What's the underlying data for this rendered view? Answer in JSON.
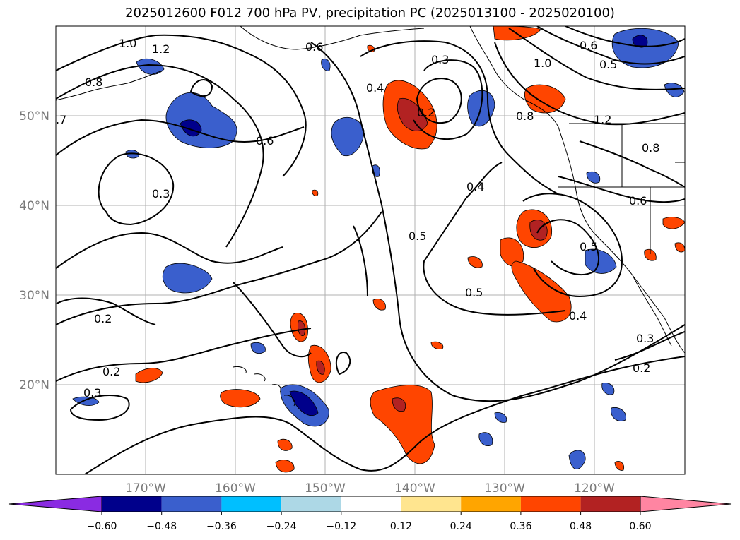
{
  "title": "2025012600 F012 700 hPa PV, precipitation PC (2025013100 - 2025020100)",
  "map": {
    "projection": "PlateCarree",
    "lon_range": [
      -180,
      -110
    ],
    "lat_range": [
      10,
      60
    ],
    "lon_ticks": [
      {
        "value": -170,
        "label": "170°W"
      },
      {
        "value": -160,
        "label": "160°W"
      },
      {
        "value": -150,
        "label": "150°W"
      },
      {
        "value": -140,
        "label": "140°W"
      },
      {
        "value": -130,
        "label": "130°W"
      },
      {
        "value": -120,
        "label": "120°W"
      }
    ],
    "lat_ticks": [
      {
        "value": 50,
        "label": "50°N"
      },
      {
        "value": 40,
        "label": "40°N"
      },
      {
        "value": 30,
        "label": "30°N"
      },
      {
        "value": 20,
        "label": "20°N"
      }
    ],
    "gridlines": true,
    "coastlines": true
  },
  "contour_labels": [
    "1.0",
    "1.2",
    "0.8",
    "0.6",
    "0.3",
    "0.4",
    "0.2",
    "0.5",
    "0.6",
    "0.4",
    "0.5",
    "0.3",
    "0.2",
    "0.4",
    "0.6",
    "0.8",
    "1.2",
    "1.0",
    "0.5",
    "0.6",
    "0.8",
    "0.3",
    "0.2",
    "0.2",
    "0.3",
    "0.5",
    ".7"
  ],
  "colorbar": {
    "ticks": [
      "−0.60",
      "−0.48",
      "−0.36",
      "−0.24",
      "−0.12",
      "0.12",
      "0.24",
      "0.36",
      "0.48",
      "0.60"
    ],
    "colors": [
      "#8a2be2",
      "#00008b",
      "#3a5fcd",
      "#00bfff",
      "#add8e6",
      "#ffffff",
      "#ffe58f",
      "#ffa500",
      "#ff4500",
      "#b22222",
      "#ff85a2"
    ]
  },
  "fields": {
    "contour_field": "700 hPa PV",
    "shaded_field": "precipitation PC"
  }
}
